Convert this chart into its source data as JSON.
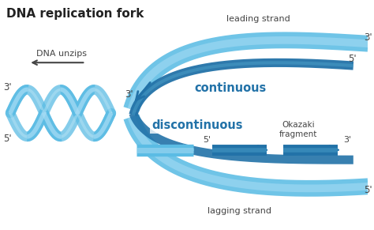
{
  "title": "DNA replication fork",
  "background_color": "#ffffff",
  "light_blue": "#5bbce4",
  "dark_blue": "#2272a8",
  "text_color": "#444444",
  "labels": {
    "title": "DNA replication fork",
    "leading": "leading strand",
    "lagging": "lagging strand",
    "continuous": "continuous",
    "discontinuous": "discontinuous",
    "okazaki": "Okazaki\nfragment",
    "dna_unzips": "DNA unzips"
  },
  "figsize": [
    4.74,
    2.91
  ],
  "dpi": 100
}
